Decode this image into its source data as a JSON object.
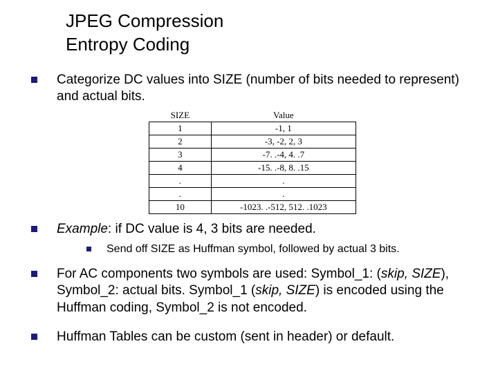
{
  "title": {
    "line1": "JPEG Compression",
    "line2": "Entropy Coding"
  },
  "bullets": {
    "b1": "Categorize DC values into SIZE (number of bits needed to represent) and actual bits.",
    "b2_prefix": "Example",
    "b2_rest": ": if DC value is 4, 3 bits are needed.",
    "b2_sub": "Send off SIZE as Huffman symbol, followed by actual 3 bits.",
    "b3_p1": "For AC components two symbols are used: Symbol_1: (",
    "b3_i1": "skip, SIZE",
    "b3_p2": "), Symbol_2: actual bits. Symbol_1 (",
    "b3_i2": "skip, SIZE",
    "b3_p3": ") is encoded using the Huffman coding, Symbol_2 is not encoded.",
    "b4": "Huffman Tables can be custom (sent in header) or default."
  },
  "table": {
    "headers": {
      "c1": "SIZE",
      "c2": "Value"
    },
    "rows": [
      {
        "size": "1",
        "value": "-1, 1"
      },
      {
        "size": "2",
        "value": "-3, -2, 2, 3"
      },
      {
        "size": "3",
        "value": "-7. .-4, 4. .7"
      },
      {
        "size": "4",
        "value": "-15. .-8, 8. .15"
      },
      {
        "size": ".",
        "value": "."
      },
      {
        "size": ".",
        "value": "."
      },
      {
        "size": "10",
        "value": "-1023. .-512, 512. .1023"
      }
    ],
    "styling": {
      "font_family": "Times New Roman",
      "font_size_pt": 10,
      "border_color": "#000000",
      "text_color": "#000000",
      "col_widths_pct": [
        30,
        70
      ],
      "text_align": "center"
    }
  },
  "colors": {
    "bullet": "#1a1a80",
    "text": "#000000",
    "background": "#ffffff"
  },
  "typography": {
    "title_fontsize": 26,
    "body_fontsize": 19,
    "sub_fontsize": 16,
    "title_weight": 400
  }
}
